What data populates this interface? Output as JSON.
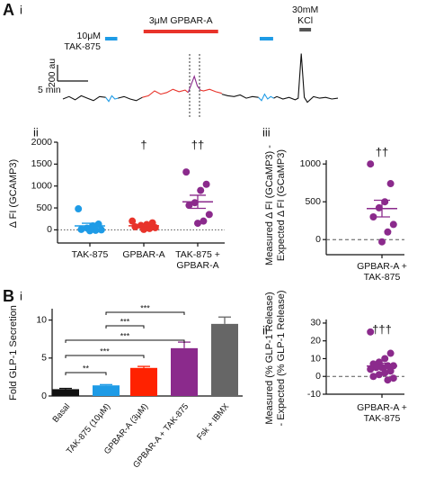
{
  "chart_data": [
    {
      "type": "trace",
      "panel": "A",
      "subpanel": "i",
      "scalebar_y": "200 au",
      "scalebar_x": "5 min",
      "stimuli": [
        {
          "label": [
            "10μM",
            "TAK-875"
          ],
          "color": "#1e9be6",
          "start": 6.9,
          "end": 8.9
        },
        {
          "label": [
            "3μM GPBAR-A"
          ],
          "color": "#e8332a",
          "start": 13.2,
          "end": 25.4
        },
        {
          "color": "#1e9be6",
          "start": 32.2,
          "end": 34.4
        },
        {
          "label": [
            "30mM",
            "KCl"
          ],
          "color": "#555555",
          "start": 38.7,
          "end": 40.6
        }
      ],
      "series": [
        {
          "color": "#111111",
          "x": [
            0,
            1,
            2,
            3,
            4,
            5,
            6,
            7
          ],
          "values": [
            0,
            30,
            -10,
            40,
            10,
            -20,
            30,
            20
          ]
        },
        {
          "color": "#1e9be6",
          "x": [
            7,
            7.5,
            8,
            8.5,
            9
          ],
          "values": [
            20,
            -30,
            40,
            0,
            10
          ]
        },
        {
          "color": "#111111",
          "x": [
            9,
            10,
            11,
            12,
            13
          ],
          "values": [
            10,
            30,
            0,
            -20,
            20
          ]
        },
        {
          "color": "#e8332a",
          "x": [
            13,
            14,
            15,
            16,
            17,
            18,
            19,
            20,
            20.5
          ],
          "values": [
            20,
            40,
            100,
            60,
            80,
            120,
            90,
            110,
            80
          ]
        },
        {
          "color": "#8b2a8c",
          "x": [
            20.5,
            21,
            21.5,
            22,
            22.5
          ],
          "values": [
            80,
            180,
            280,
            160,
            110
          ]
        },
        {
          "color": "#e8332a",
          "x": [
            22.5,
            23,
            24,
            25,
            26
          ],
          "values": [
            110,
            100,
            120,
            90,
            70
          ]
        },
        {
          "color": "#111111",
          "x": [
            26,
            27,
            28,
            29,
            30,
            31,
            32
          ],
          "values": [
            60,
            40,
            30,
            50,
            10,
            30,
            20
          ]
        },
        {
          "color": "#1e9be6",
          "x": [
            32,
            32.5,
            33,
            33.5,
            34,
            34.5
          ],
          "values": [
            20,
            -20,
            60,
            0,
            30,
            10
          ]
        },
        {
          "color": "#111111",
          "x": [
            34.5,
            35,
            36,
            37,
            38,
            38.5,
            39,
            39.5,
            40,
            41,
            42,
            43,
            44,
            45
          ],
          "values": [
            10,
            30,
            0,
            20,
            -10,
            10,
            560,
            20,
            -40,
            30,
            10,
            20,
            0,
            10
          ]
        }
      ]
    },
    {
      "type": "dot",
      "subpanel": "ii",
      "ylabel": [
        "Δ FI (GCAMP3)"
      ],
      "ylim": [
        -300,
        2000
      ],
      "yticks": [
        0,
        500,
        1000,
        1500,
        2000
      ],
      "hline": 0,
      "hline_style": "dotted",
      "groups": [
        {
          "category": "TAK-875",
          "color": "#1e9be6",
          "values": [
            480,
            130,
            90,
            40,
            10,
            0,
            -10,
            -20
          ],
          "mean": 90,
          "sem": 60
        },
        {
          "category": "GPBAR-A",
          "color": "#e8332a",
          "values": [
            200,
            160,
            120,
            100,
            70,
            50,
            30,
            10
          ],
          "mean": 92,
          "sem": 23,
          "label": "†"
        },
        {
          "category": "TAK-875 + GPBAR-A",
          "color": "#8b2a8c",
          "values": [
            1320,
            1040,
            900,
            620,
            560,
            350,
            200,
            150
          ],
          "mean": 640,
          "sem": 150,
          "label": "††"
        }
      ]
    },
    {
      "type": "dot",
      "subpanel": "iii",
      "ylabel": [
        "Measured Δ FI (GCaMP3) -",
        "Expected Δ FI (GCaMP3)"
      ],
      "ylim": [
        -200,
        1050
      ],
      "yticks": [
        0,
        500,
        1000
      ],
      "hline": 0,
      "hline_style": "dashed",
      "groups": [
        {
          "category": "GPBAR-A + TAK-875",
          "color": "#8b2a8c",
          "values": [
            1000,
            740,
            500,
            420,
            300,
            200,
            100,
            -30
          ],
          "mean": 410,
          "sem": 110,
          "label": "††"
        }
      ]
    },
    {
      "type": "bar",
      "panel": "B",
      "subpanel": "i",
      "ylabel": [
        "Fold GLP-1 Secretion"
      ],
      "ylim": [
        0,
        11.5
      ],
      "yticks": [
        0,
        5,
        10
      ],
      "categories": [
        "Basal",
        "TAK-875 (10μM)",
        "GPBAR-A (3μM)",
        "GPBAR-A + TAK-875",
        "Fsk + IBMX"
      ],
      "values": [
        0.9,
        1.4,
        3.7,
        6.3,
        9.5
      ],
      "errors": [
        0.1,
        0.1,
        0.2,
        0.8,
        0.9
      ],
      "colors": [
        "#111111",
        "#1e9be6",
        "#ff2200",
        "#8b2a8c",
        "#666666"
      ],
      "significance": [
        {
          "from": "TAK-875 (10μM)",
          "to": "GPBAR-A + TAK-875",
          "label": "***"
        },
        {
          "from": "TAK-875 (10μM)",
          "to": "GPBAR-A (3μM)",
          "label": "***"
        },
        {
          "from": "Basal",
          "to": "GPBAR-A + TAK-875",
          "label": "***"
        },
        {
          "from": "Basal",
          "to": "GPBAR-A (3μM)",
          "label": "***"
        },
        {
          "from": "Basal",
          "to": "TAK-875 (10μM)",
          "label": "**"
        }
      ]
    },
    {
      "type": "dot",
      "subpanel": "ii",
      "ylabel": [
        "Measured (% GLP-1 Release)",
        "- Expected (% GLP-1 Release)"
      ],
      "ylim": [
        -10,
        32
      ],
      "yticks": [
        -10,
        0,
        10,
        20,
        30
      ],
      "hline": 0,
      "hline_style": "dashed",
      "groups": [
        {
          "category": "GPBAR-A + TAK-875",
          "color": "#8b2a8c",
          "values": [
            25,
            13,
            10,
            8,
            7,
            6,
            6,
            5,
            5,
            4,
            3,
            2,
            1,
            0,
            -1,
            -2
          ],
          "mean": 5.8,
          "sem": 1.6,
          "label": "†††"
        }
      ]
    }
  ]
}
